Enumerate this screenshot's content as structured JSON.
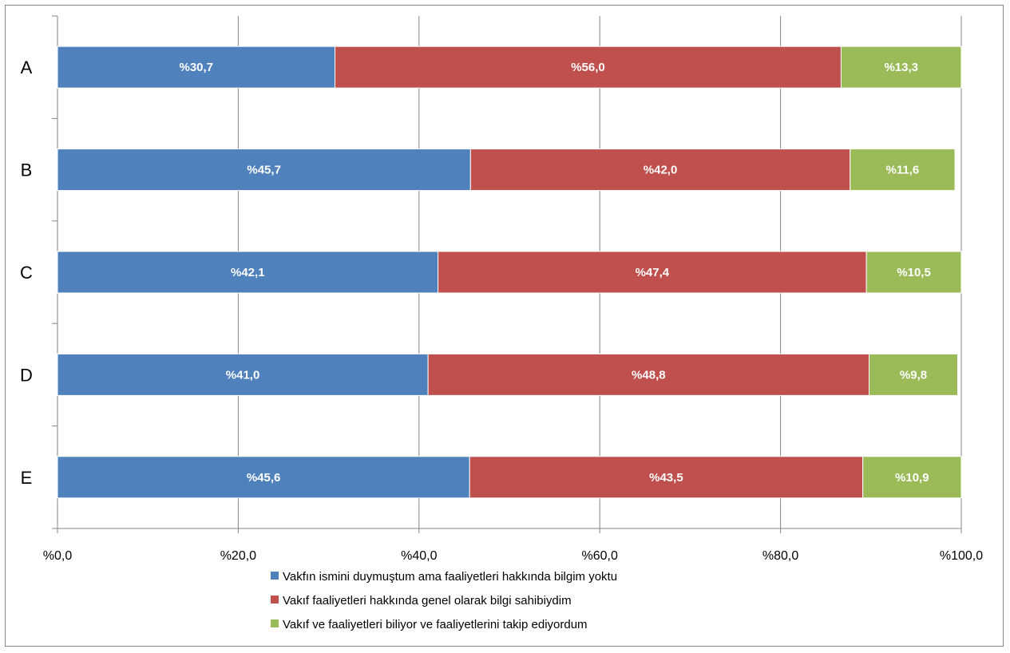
{
  "chart_data": {
    "type": "bar",
    "orientation": "horizontal",
    "stacked": true,
    "categories": [
      "A",
      "B",
      "C",
      "D",
      "E"
    ],
    "series": [
      {
        "name": "Vakfın ismini duymuştum  ama faaliyetleri hakkında bilgim yoktu",
        "color": "#4F81BD",
        "values": [
          30.7,
          45.7,
          42.1,
          41.0,
          45.6
        ],
        "labels": [
          "%30,7",
          "%45,7",
          "%42,1",
          "%41,0",
          "%45,6"
        ]
      },
      {
        "name": "Vakıf faaliyetleri hakkında genel olarak bilgi sahibiydim",
        "color": "#C0504D",
        "values": [
          56.0,
          42.0,
          47.4,
          48.8,
          43.5
        ],
        "labels": [
          "%56,0",
          "%42,0",
          "%47,4",
          "%48,8",
          "%43,5"
        ]
      },
      {
        "name": "Vakıf ve faaliyetleri biliyor ve faaliyetlerini takip ediyordum",
        "color": "#9BBB59",
        "values": [
          13.3,
          11.6,
          10.5,
          9.8,
          10.9
        ],
        "labels": [
          "%13,3",
          "%11,6",
          "%10,5",
          "%9,8",
          "%10,9"
        ]
      }
    ],
    "xlim": [
      0,
      100
    ],
    "x_ticks": [
      0,
      20,
      40,
      60,
      80,
      100
    ],
    "x_tick_labels": [
      "%0,0",
      "%20,0",
      "%40,0",
      "%60,0",
      "%80,0",
      "%100,0"
    ],
    "grid": true,
    "legend_position": "bottom"
  }
}
